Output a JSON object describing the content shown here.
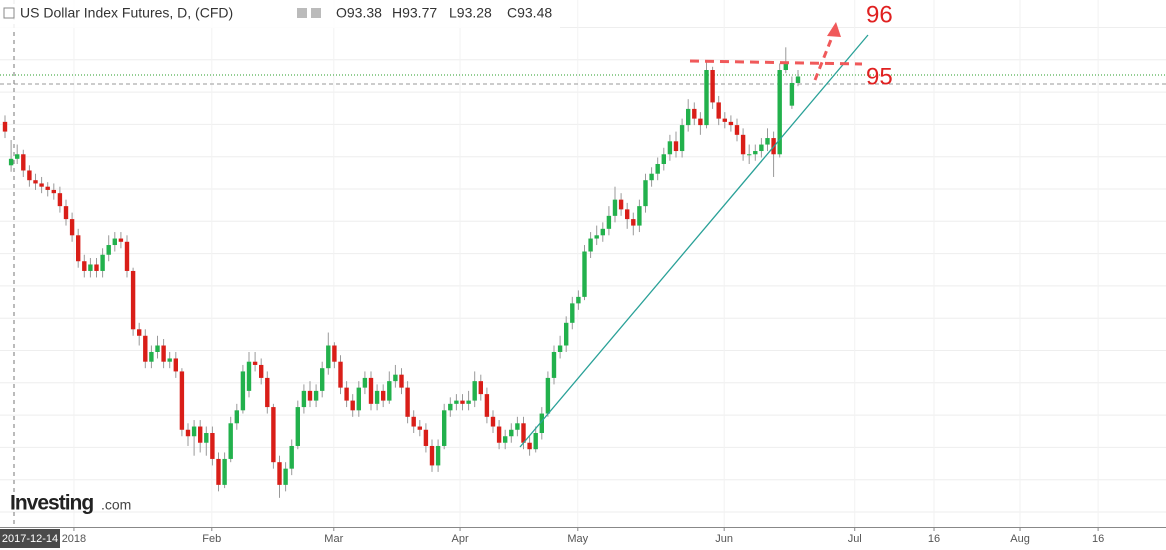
{
  "chart_data": {
    "type": "candlestick",
    "title": "US Dollar Index Futures, D, (CFD)",
    "legend_values": [
      "O93.38",
      "H93.77",
      "L93.28",
      "C93.48"
    ],
    "crosshair_label": "2017-12-14",
    "annotations": [
      "96",
      "95"
    ],
    "watermark": [
      "Investing",
      ".com"
    ],
    "up_color": "#22b14c",
    "down_color": "#d91e18",
    "grid": true,
    "ylim": [
      87.8,
      95.93
    ],
    "xlim": [
      -0.82,
      190.33
    ],
    "xticks": [
      {
        "value": 11.3,
        "label": "2018"
      },
      {
        "value": 33.9,
        "label": "Feb"
      },
      {
        "value": 53.9,
        "label": "Mar"
      },
      {
        "value": 74.6,
        "label": "Apr"
      },
      {
        "value": 93.9,
        "label": "May"
      },
      {
        "value": 117.9,
        "label": "Jun"
      },
      {
        "value": 139.3,
        "label": "Jul"
      },
      {
        "value": 152.3,
        "label": "16"
      },
      {
        "value": 166.4,
        "label": "Aug"
      },
      {
        "value": 179.2,
        "label": "16"
      }
    ],
    "open": [
      94.05,
      93.38,
      93.48,
      93.55,
      93.3,
      93.15,
      93.1,
      93.05,
      93.0,
      92.95,
      92.75,
      92.55,
      92.3,
      91.9,
      91.75,
      91.85,
      91.75,
      92.0,
      92.15,
      92.25,
      92.2,
      91.75,
      90.85,
      90.75,
      90.35,
      90.5,
      90.6,
      90.35,
      90.4,
      90.2,
      89.3,
      89.2,
      89.35,
      89.1,
      89.25,
      88.85,
      88.45,
      88.85,
      89.4,
      89.6,
      89.9,
      90.35,
      90.3,
      90.1,
      89.65,
      88.8,
      88.45,
      88.7,
      89.05,
      89.65,
      89.9,
      89.75,
      89.9,
      90.25,
      90.6,
      90.35,
      89.95,
      89.75,
      89.6,
      89.95,
      90.1,
      89.7,
      89.9,
      89.75,
      90.05,
      90.15,
      89.95,
      89.5,
      89.35,
      89.3,
      89.05,
      88.75,
      89.05,
      89.6,
      89.7,
      89.75,
      89.7,
      89.75,
      90.05,
      89.85,
      89.5,
      89.35,
      89.1,
      89.2,
      89.3,
      89.4,
      89.1,
      89.0,
      89.25,
      89.55,
      90.1,
      90.5,
      90.6,
      90.95,
      91.25,
      91.35,
      92.05,
      92.25,
      92.3,
      92.4,
      92.6,
      92.85,
      92.7,
      92.55,
      92.45,
      92.75,
      93.15,
      93.25,
      93.4,
      93.55,
      93.75,
      93.6,
      94.0,
      94.25,
      94.1,
      94.0,
      94.85,
      94.35,
      94.1,
      94.05,
      94.0,
      93.85,
      93.55,
      93.55,
      93.6,
      93.7,
      93.8,
      93.55,
      94.85,
      94.3,
      94.65
    ],
    "high": [
      94.15,
      93.77,
      93.7,
      93.62,
      93.38,
      93.25,
      93.2,
      93.12,
      93.1,
      93.05,
      92.85,
      92.65,
      92.4,
      92.0,
      91.95,
      91.95,
      92.1,
      92.3,
      92.35,
      92.35,
      92.3,
      91.8,
      90.95,
      90.85,
      90.6,
      90.75,
      90.7,
      90.5,
      90.5,
      90.25,
      89.4,
      89.45,
      89.45,
      89.35,
      89.35,
      88.95,
      88.95,
      89.5,
      89.7,
      90.3,
      90.5,
      90.5,
      90.4,
      90.2,
      89.7,
      88.9,
      88.8,
      89.15,
      89.75,
      90.0,
      90.05,
      90.0,
      90.35,
      90.8,
      90.65,
      90.45,
      90.05,
      89.85,
      90.05,
      90.2,
      90.2,
      90.0,
      90.0,
      90.2,
      90.3,
      90.25,
      90.05,
      89.6,
      89.45,
      89.4,
      89.15,
      89.15,
      89.7,
      89.8,
      89.85,
      89.85,
      89.9,
      90.2,
      90.15,
      89.95,
      89.6,
      89.45,
      89.3,
      89.4,
      89.5,
      89.5,
      89.2,
      89.35,
      89.65,
      90.2,
      90.6,
      90.75,
      91.05,
      91.35,
      91.45,
      92.15,
      92.35,
      92.45,
      92.5,
      92.75,
      93.05,
      92.95,
      92.8,
      92.65,
      92.85,
      93.25,
      93.35,
      93.5,
      93.65,
      93.85,
      93.9,
      94.1,
      94.4,
      94.35,
      94.2,
      95.0,
      94.9,
      94.45,
      94.2,
      94.15,
      94.1,
      93.95,
      93.7,
      93.7,
      93.8,
      93.95,
      93.9,
      94.95,
      95.2,
      94.75,
      94.85
    ],
    "low": [
      93.8,
      93.28,
      93.4,
      93.2,
      93.05,
      93.0,
      92.95,
      92.9,
      92.85,
      92.65,
      92.45,
      92.2,
      91.8,
      91.65,
      91.65,
      91.65,
      91.65,
      91.9,
      92.05,
      92.1,
      91.65,
      90.75,
      90.6,
      90.25,
      90.25,
      90.4,
      90.25,
      90.25,
      90.1,
      89.2,
      89.05,
      88.9,
      88.95,
      88.9,
      88.75,
      88.35,
      88.4,
      88.8,
      89.3,
      89.55,
      89.8,
      90.2,
      90.0,
      89.55,
      88.7,
      88.25,
      88.35,
      88.6,
      89.0,
      89.55,
      89.65,
      89.65,
      89.8,
      90.15,
      90.25,
      89.85,
      89.65,
      89.5,
      89.5,
      89.85,
      89.6,
      89.6,
      89.65,
      89.7,
      89.95,
      89.85,
      89.4,
      89.25,
      89.2,
      88.95,
      88.65,
      88.65,
      89.0,
      89.5,
      89.6,
      89.6,
      89.6,
      89.65,
      89.75,
      89.4,
      89.25,
      89.0,
      89.0,
      89.1,
      89.2,
      89.0,
      88.9,
      88.95,
      89.15,
      89.5,
      90.0,
      90.4,
      90.5,
      90.85,
      91.15,
      91.3,
      91.95,
      92.15,
      92.2,
      92.3,
      92.5,
      92.6,
      92.4,
      92.3,
      92.35,
      92.65,
      93.05,
      93.15,
      93.3,
      93.45,
      93.5,
      93.5,
      93.9,
      94.0,
      93.85,
      93.95,
      94.25,
      94.0,
      93.95,
      93.9,
      93.75,
      93.45,
      93.4,
      93.45,
      93.5,
      93.6,
      93.2,
      93.5,
      94.8,
      94.25,
      94.6
    ],
    "close": [
      93.9,
      93.48,
      93.55,
      93.3,
      93.15,
      93.1,
      93.05,
      93.0,
      92.95,
      92.75,
      92.55,
      92.3,
      91.9,
      91.75,
      91.85,
      91.75,
      92.0,
      92.15,
      92.25,
      92.2,
      91.75,
      90.85,
      90.75,
      90.35,
      90.5,
      90.6,
      90.35,
      90.4,
      90.2,
      89.3,
      89.2,
      89.35,
      89.1,
      89.25,
      88.85,
      88.45,
      88.85,
      89.4,
      89.6,
      90.2,
      90.35,
      90.3,
      90.1,
      89.65,
      88.8,
      88.45,
      88.7,
      89.05,
      89.65,
      89.9,
      89.75,
      89.9,
      90.25,
      90.6,
      90.35,
      89.95,
      89.75,
      89.6,
      89.95,
      90.1,
      89.7,
      89.9,
      89.75,
      90.05,
      90.15,
      89.95,
      89.5,
      89.35,
      89.3,
      89.05,
      88.75,
      89.05,
      89.6,
      89.7,
      89.75,
      89.7,
      89.75,
      90.05,
      89.85,
      89.5,
      89.35,
      89.1,
      89.2,
      89.3,
      89.4,
      89.1,
      89.0,
      89.25,
      89.55,
      90.1,
      90.5,
      90.6,
      90.95,
      91.25,
      91.35,
      92.05,
      92.25,
      92.3,
      92.4,
      92.6,
      92.85,
      92.7,
      92.55,
      92.45,
      92.75,
      93.15,
      93.25,
      93.4,
      93.55,
      93.75,
      93.6,
      94.0,
      94.25,
      94.1,
      94.0,
      94.85,
      94.35,
      94.1,
      94.05,
      94.0,
      93.85,
      93.55,
      93.55,
      93.6,
      93.7,
      93.8,
      93.55,
      94.85,
      94.95,
      94.65,
      94.75
    ]
  }
}
